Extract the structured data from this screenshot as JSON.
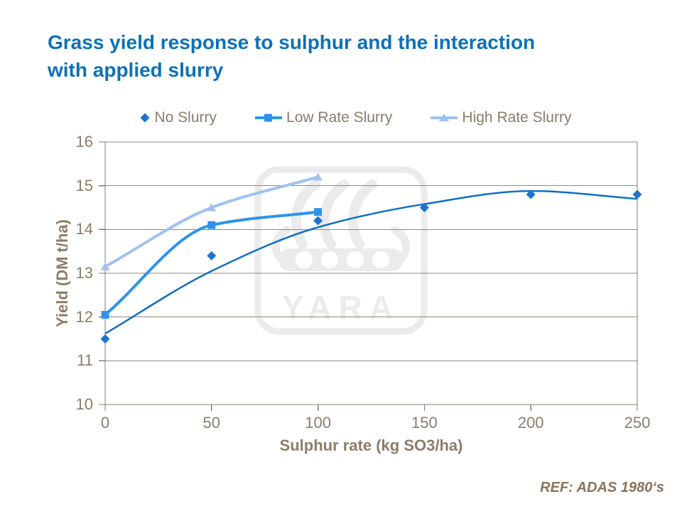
{
  "page": {
    "title_line1": "Grass yield response to sulphur and the interaction",
    "title_line2": "with applied slurry",
    "ref_note": "REF: ADAS 1980‘s"
  },
  "colors": {
    "title": "#0d71b8",
    "axis_text": "#8c7c69",
    "axis_line": "#8a7b69",
    "grid_line": "#93897c",
    "ref_text": "#8a7357",
    "watermark": "#ebebeb"
  },
  "watermark": {
    "brand": "YARA"
  },
  "chart_data": {
    "type": "line",
    "title": "",
    "xlabel": "Sulphur rate (kg SO3/ha)",
    "ylabel": "Yield (DM t/ha)",
    "xlim": [
      0,
      250
    ],
    "ylim": [
      10,
      16
    ],
    "xticks": [
      0,
      50,
      100,
      150,
      200,
      250
    ],
    "yticks": [
      10,
      11,
      12,
      13,
      14,
      15,
      16
    ],
    "grid": "horizontal",
    "legend_position": "top-center",
    "series": [
      {
        "name": "No Slurry",
        "marker": "diamond",
        "color": "#1b74ce",
        "line": "none",
        "points": [
          [
            0,
            11.5
          ],
          [
            50,
            13.4
          ],
          [
            100,
            14.2
          ],
          [
            150,
            14.5
          ],
          [
            200,
            14.8
          ],
          [
            250,
            14.8
          ]
        ],
        "trendline": {
          "color": "#0e6fc4",
          "width": 2.5,
          "points": [
            [
              0,
              11.62
            ],
            [
              50,
              13.05
            ],
            [
              100,
              14.05
            ],
            [
              150,
              14.58
            ],
            [
              200,
              14.88
            ],
            [
              250,
              14.7
            ]
          ]
        }
      },
      {
        "name": "Low Rate Slurry",
        "marker": "square",
        "color": "#2d93ea",
        "line": "smooth",
        "width": 4,
        "points": [
          [
            0,
            12.05
          ],
          [
            50,
            14.1
          ],
          [
            100,
            14.4
          ]
        ]
      },
      {
        "name": "High Rate Slurry",
        "marker": "triangle",
        "color": "#9fc2f0",
        "line": "smooth",
        "width": 4,
        "points": [
          [
            0,
            13.15
          ],
          [
            50,
            14.5
          ],
          [
            100,
            15.2
          ]
        ]
      }
    ]
  }
}
